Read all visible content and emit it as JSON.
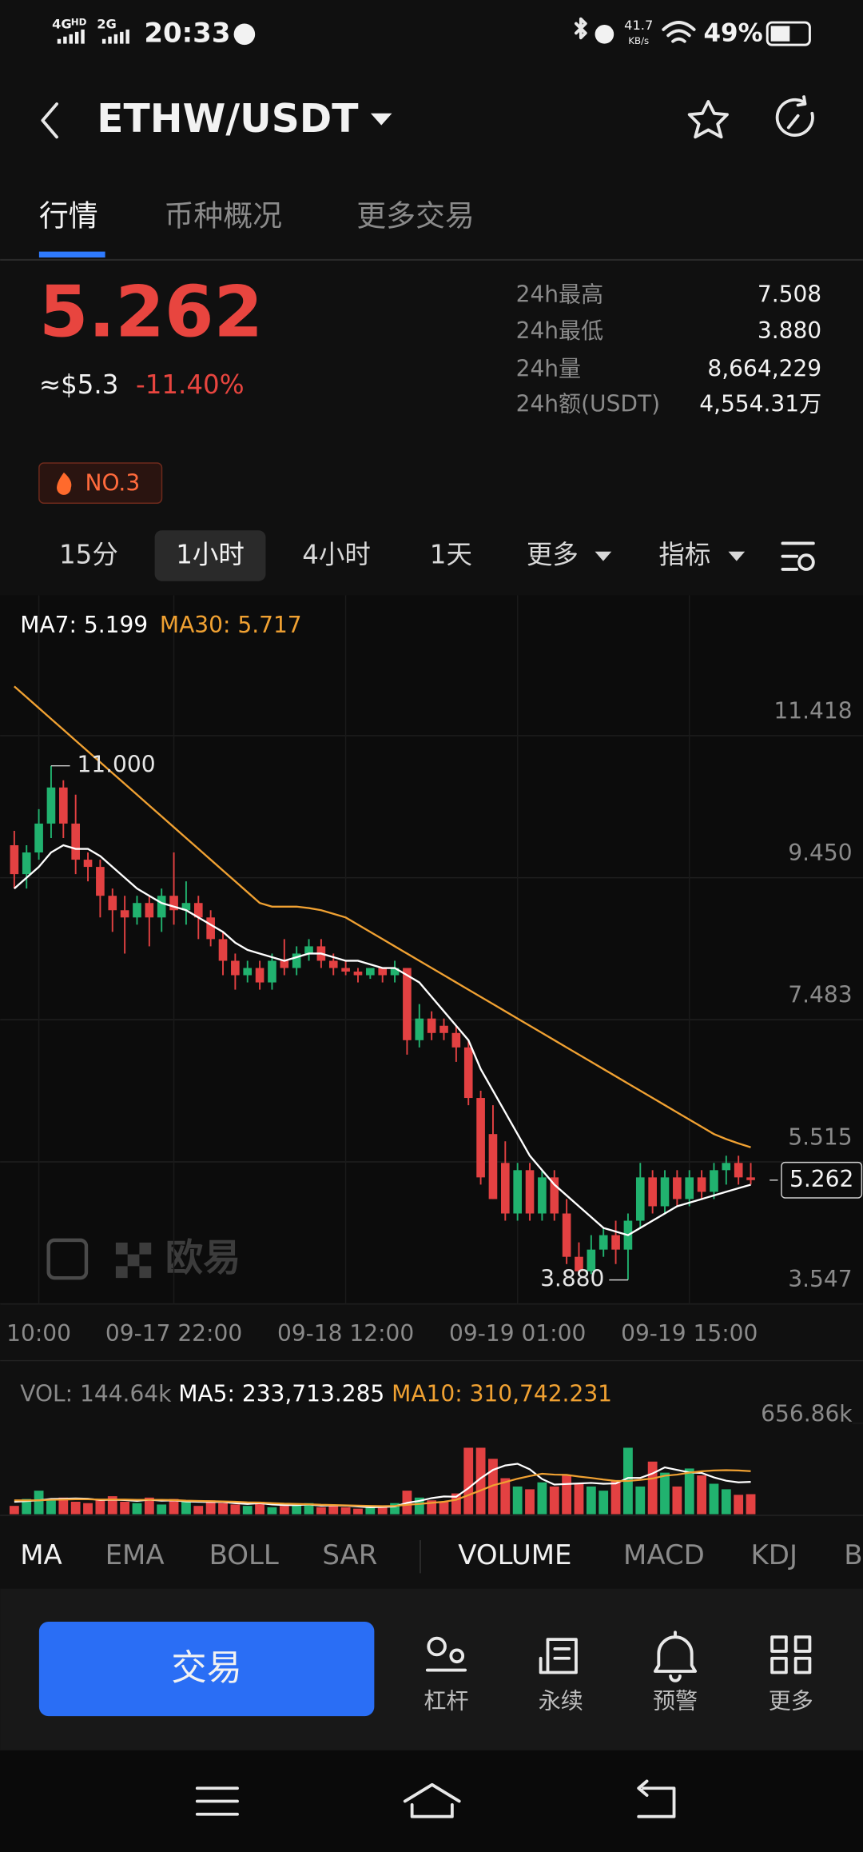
{
  "status_bar": {
    "net1": "4G",
    "net1_tag": "HD",
    "net2": "2G",
    "time": "20:33",
    "speed": "41.7",
    "speed_unit": "KB/s",
    "battery": "49%"
  },
  "header": {
    "pair": "ETHW/USDT"
  },
  "tabs": [
    "行情",
    "币种概况",
    "更多交易"
  ],
  "price": {
    "last": "5.262",
    "usd": "≈$5.3",
    "change": "-11.40%"
  },
  "stats": [
    {
      "label": "24h最高",
      "value": "7.508"
    },
    {
      "label": "24h最低",
      "value": "3.880"
    },
    {
      "label": "24h量",
      "value": "8,664,229"
    },
    {
      "label": "24h额(USDT)",
      "value": "4,554.31万"
    }
  ],
  "rank_badge": "NO.3",
  "timeframes": [
    "15分",
    "1小时",
    "4小时",
    "1天",
    "更多",
    "指标"
  ],
  "watermark": "欧易",
  "chart_data": [
    {
      "type": "candlestick",
      "up_color": "#21b26f",
      "down_color": "#e34142",
      "grid": true,
      "categories": [
        null,
        null,
        "10:00",
        null,
        null,
        null,
        null,
        null,
        null,
        null,
        null,
        null,
        null,
        "09-17 22:00",
        null,
        null,
        null,
        null,
        null,
        null,
        null,
        null,
        null,
        null,
        null,
        null,
        null,
        "09-18 12:00",
        null,
        null,
        null,
        null,
        null,
        null,
        null,
        null,
        null,
        null,
        null,
        null,
        null,
        "09-19 01:00",
        null,
        null,
        null,
        null,
        null,
        null,
        null,
        null,
        null,
        null,
        null,
        null,
        null,
        "09-19 15:00",
        null,
        null,
        null,
        null,
        null
      ],
      "open": [
        9.9,
        9.5,
        9.8,
        10.2,
        10.7,
        10.2,
        9.7,
        9.6,
        9.2,
        9.0,
        8.9,
        9.1,
        8.9,
        9.2,
        9.0,
        9.1,
        8.9,
        8.6,
        8.3,
        8.1,
        8.2,
        8.0,
        8.3,
        8.2,
        8.4,
        8.5,
        8.3,
        8.2,
        8.15,
        8.1,
        8.2,
        8.1,
        8.2,
        7.2,
        7.5,
        7.4,
        7.3,
        7.1,
        6.4,
        5.9,
        5.5,
        4.8,
        5.4,
        4.8,
        5.3,
        4.8,
        4.2,
        4.0,
        4.3,
        4.5,
        4.3,
        4.7,
        5.3,
        4.9,
        5.3,
        5.0,
        5.3,
        5.1,
        5.4,
        5.5,
        5.3
      ],
      "high": [
        10.1,
        9.9,
        10.4,
        11.0,
        10.8,
        10.6,
        9.8,
        9.7,
        9.3,
        9.2,
        9.2,
        9.2,
        9.3,
        9.8,
        9.4,
        9.2,
        9.0,
        8.7,
        8.4,
        8.3,
        8.3,
        8.4,
        8.6,
        8.5,
        8.6,
        8.6,
        8.4,
        8.3,
        8.2,
        8.2,
        8.2,
        8.3,
        8.2,
        7.7,
        7.6,
        7.5,
        7.4,
        7.2,
        6.5,
        6.3,
        5.8,
        5.5,
        5.5,
        5.4,
        5.4,
        5.0,
        4.4,
        4.5,
        4.6,
        4.7,
        4.8,
        5.5,
        5.4,
        5.4,
        5.4,
        5.4,
        5.4,
        5.5,
        5.6,
        5.6,
        5.5
      ],
      "low": [
        9.3,
        9.3,
        9.7,
        10.0,
        10.0,
        9.5,
        9.4,
        8.9,
        8.7,
        8.4,
        8.8,
        8.5,
        8.7,
        8.8,
        8.8,
        8.6,
        8.5,
        8.1,
        7.9,
        8.0,
        7.9,
        7.9,
        8.1,
        8.1,
        8.3,
        8.2,
        8.1,
        8.1,
        8.0,
        8.05,
        8.0,
        8.0,
        7.0,
        7.1,
        7.2,
        7.2,
        6.9,
        6.3,
        5.2,
        5.0,
        4.7,
        4.7,
        4.7,
        4.7,
        4.7,
        4.1,
        3.95,
        3.96,
        4.2,
        4.1,
        3.88,
        4.6,
        4.8,
        4.8,
        4.9,
        4.9,
        5.0,
        5.0,
        5.2,
        5.2,
        5.2
      ],
      "close": [
        9.5,
        9.8,
        10.2,
        10.7,
        10.2,
        9.7,
        9.6,
        9.2,
        9.0,
        8.9,
        9.1,
        8.9,
        9.2,
        9.0,
        9.1,
        8.9,
        8.6,
        8.3,
        8.1,
        8.2,
        8.0,
        8.3,
        8.2,
        8.4,
        8.5,
        8.3,
        8.2,
        8.15,
        8.1,
        8.2,
        8.1,
        8.2,
        7.2,
        7.5,
        7.3,
        7.3,
        7.1,
        6.4,
        5.3,
        5.0,
        4.8,
        5.4,
        4.8,
        5.3,
        4.8,
        4.2,
        4.0,
        4.3,
        4.5,
        4.3,
        4.7,
        5.3,
        4.9,
        5.3,
        5.0,
        5.3,
        5.1,
        5.4,
        5.5,
        5.3,
        5.262
      ],
      "series": [
        {
          "name": "MA7",
          "readout": "MA7: 5.199",
          "color": "#ffffff",
          "values": [
            9.3,
            9.45,
            9.6,
            9.8,
            9.9,
            9.85,
            9.85,
            9.75,
            9.6,
            9.45,
            9.3,
            9.2,
            9.1,
            9.05,
            9.0,
            8.9,
            8.8,
            8.7,
            8.55,
            8.45,
            8.4,
            8.35,
            8.3,
            8.35,
            8.4,
            8.4,
            8.35,
            8.3,
            8.3,
            8.25,
            8.2,
            8.2,
            8.1,
            8.0,
            7.8,
            7.6,
            7.4,
            7.2,
            6.8,
            6.5,
            6.2,
            5.9,
            5.6,
            5.4,
            5.2,
            5.05,
            4.9,
            4.75,
            4.6,
            4.55,
            4.5,
            4.6,
            4.7,
            4.8,
            4.9,
            4.95,
            5.0,
            5.05,
            5.1,
            5.15,
            5.199
          ]
        },
        {
          "name": "MA30",
          "readout": "MA30: 5.717",
          "color": "#f0a132",
          "values": [
            12.1,
            11.95,
            11.8,
            11.65,
            11.5,
            11.35,
            11.2,
            11.05,
            10.9,
            10.75,
            10.6,
            10.45,
            10.3,
            10.15,
            10.0,
            9.85,
            9.7,
            9.55,
            9.4,
            9.25,
            9.1,
            9.05,
            9.05,
            9.05,
            9.03,
            9.0,
            8.95,
            8.9,
            8.8,
            8.7,
            8.6,
            8.5,
            8.4,
            8.3,
            8.2,
            8.1,
            8.0,
            7.9,
            7.8,
            7.7,
            7.6,
            7.5,
            7.4,
            7.3,
            7.2,
            7.1,
            7.0,
            6.9,
            6.8,
            6.7,
            6.6,
            6.5,
            6.4,
            6.3,
            6.2,
            6.1,
            6.0,
            5.9,
            5.83,
            5.77,
            5.717
          ]
        }
      ],
      "annotations": {
        "max_label": "11.000",
        "min_label": "3.880",
        "last_label": "5.262"
      },
      "ylim": [
        3.547,
        13.1
      ],
      "yticks": [
        3.547,
        5.515,
        7.483,
        {
          "value": 9.45,
          "label": "9.450"
        },
        11.418
      ]
    },
    {
      "type": "bar",
      "readout": "VOL: 144.64k",
      "values": [
        60000,
        110000,
        170000,
        100000,
        120000,
        90000,
        80000,
        100000,
        130000,
        90000,
        80000,
        120000,
        70000,
        110000,
        90000,
        60000,
        100000,
        80000,
        70000,
        60000,
        90000,
        50000,
        60000,
        70000,
        80000,
        50000,
        60000,
        50000,
        40000,
        50000,
        60000,
        80000,
        170000,
        120000,
        100000,
        90000,
        150000,
        480000,
        480000,
        400000,
        260000,
        200000,
        180000,
        230000,
        200000,
        280000,
        220000,
        200000,
        170000,
        240000,
        480000,
        200000,
        380000,
        300000,
        200000,
        330000,
        280000,
        220000,
        180000,
        140000,
        144640
      ],
      "series": [
        {
          "name": "MA5",
          "readout": "MA5: 233,713.285",
          "color": "#ffffff",
          "values": [
            90000,
            95000,
            100000,
            110000,
            112000,
            114000,
            112000,
            102000,
            104000,
            102000,
            96000,
            104000,
            98000,
            100000,
            92000,
            90000,
            88000,
            88000,
            80000,
            74000,
            80000,
            70000,
            66000,
            66000,
            70000,
            62000,
            64000,
            62000,
            56000,
            50000,
            52000,
            56000,
            82000,
            96000,
            116000,
            128000,
            126000,
            188000,
            260000,
            320000,
            352000,
            364000,
            324000,
            254000,
            214000,
            218000,
            222000,
            226000,
            220000,
            222000,
            262000,
            262000,
            294000,
            338000,
            320000,
            302000,
            298000,
            266000,
            242000,
            230000,
            233713.285
          ]
        },
        {
          "name": "MA10",
          "readout": "MA10: 310,742.231",
          "color": "#f0a132",
          "values": [
            100000,
            100000,
            100000,
            104000,
            106000,
            108000,
            108000,
            106000,
            106000,
            106000,
            104000,
            104000,
            104000,
            102000,
            98000,
            96000,
            94000,
            92000,
            90000,
            86000,
            84000,
            80000,
            76000,
            74000,
            72000,
            68000,
            66000,
            64000,
            62000,
            60000,
            58000,
            60000,
            68000,
            74000,
            82000,
            90000,
            104000,
            138000,
            172000,
            208000,
            232000,
            256000,
            276000,
            292000,
            286000,
            284000,
            272000,
            262000,
            250000,
            240000,
            240000,
            248000,
            258000,
            278000,
            286000,
            300000,
            310000,
            316000,
            318000,
            316000,
            310742.231
          ]
        }
      ],
      "ylim": [
        0,
        656860
      ],
      "yticks": [
        {
          "value": 656860,
          "label": "656.86k"
        }
      ]
    }
  ],
  "indicator_tabs": [
    "MA",
    "EMA",
    "BOLL",
    "SAR",
    "VOLUME",
    "MACD",
    "KDJ",
    "B"
  ],
  "actions": {
    "trade": "交易",
    "buttons": [
      "杠杆",
      "永续",
      "预警",
      "更多"
    ]
  }
}
